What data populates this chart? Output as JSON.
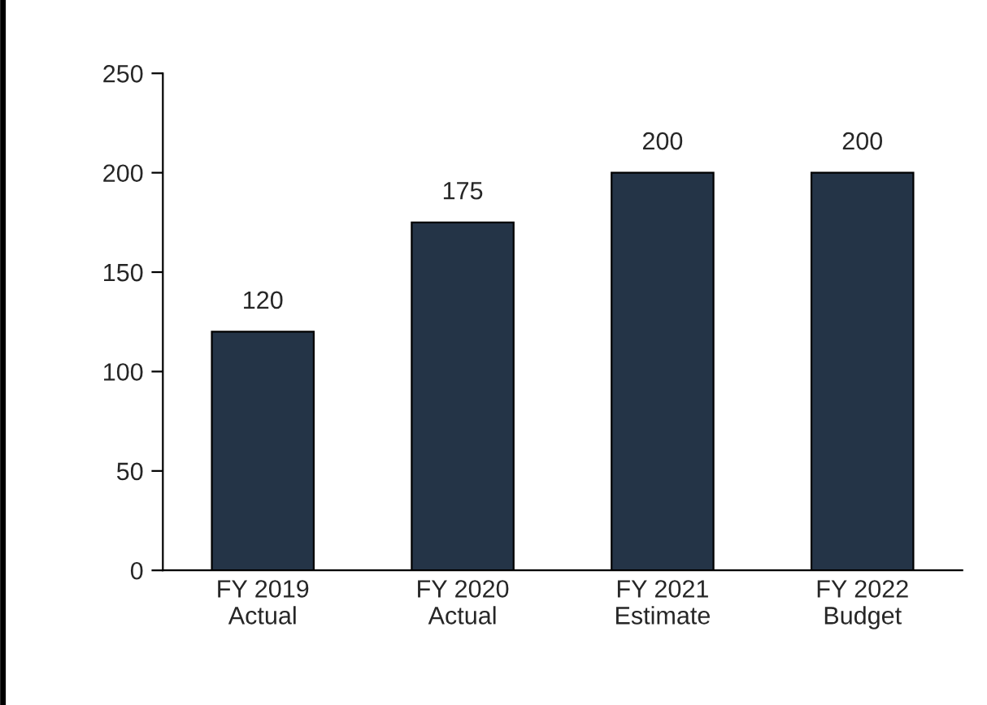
{
  "chart_data": {
    "type": "bar",
    "categories": [
      "FY 2019\nActual",
      "FY 2020\nActual",
      "FY 2021\nEstimate",
      "FY 2022\nBudget"
    ],
    "values": [
      120,
      175,
      200,
      200
    ],
    "color": "#243447",
    "ylim": [
      0,
      250
    ],
    "yticks": [
      0,
      50,
      100,
      150,
      200,
      250
    ],
    "data_labels": true,
    "grid": false,
    "legend": false
  }
}
